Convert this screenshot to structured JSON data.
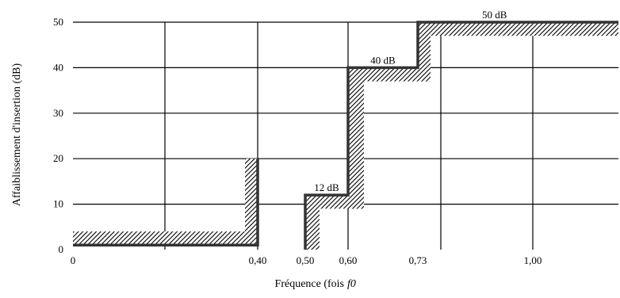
{
  "chart_data": {
    "type": "line",
    "title": "",
    "xlabel": "Fréquence (fois",
    "xlabel_symbol": "f0",
    "ylabel": "Affaiblissement d'insertion (dB)",
    "ylim": [
      0,
      50
    ],
    "y_ticks": [
      "0",
      "10",
      "20",
      "30",
      "40",
      "50"
    ],
    "x_ticks": [
      {
        "value": 0,
        "label": "0"
      },
      {
        "value": 0.4,
        "label": "0,40"
      },
      {
        "value": 0.5,
        "label": "0,50"
      },
      {
        "value": 0.6,
        "label": "0,60"
      },
      {
        "value": 0.73,
        "label": "0,73"
      },
      {
        "value": 1.0,
        "label": "1,00"
      }
    ],
    "grid": true,
    "series": [
      {
        "values_lower_mask": [
          [
            0,
            1
          ],
          [
            0.4,
            1
          ],
          [
            0.4,
            20
          ]
        ],
        "values_upper_mask": [
          [
            0.5,
            0
          ],
          [
            0.5,
            12
          ],
          [
            0.6,
            12
          ],
          [
            0.6,
            40
          ],
          [
            0.73,
            40
          ],
          [
            0.73,
            50
          ],
          [
            1.2,
            50
          ]
        ]
      }
    ],
    "annotations": [
      {
        "text": "12 dB",
        "x": 0.55,
        "y": 12
      },
      {
        "text": "40 dB",
        "x": 0.665,
        "y": 40
      },
      {
        "text": "50 dB",
        "x": 0.91,
        "y": 50
      }
    ],
    "colors": {
      "line": "#333333",
      "hatch": "#000000",
      "grid": "#000000"
    }
  }
}
